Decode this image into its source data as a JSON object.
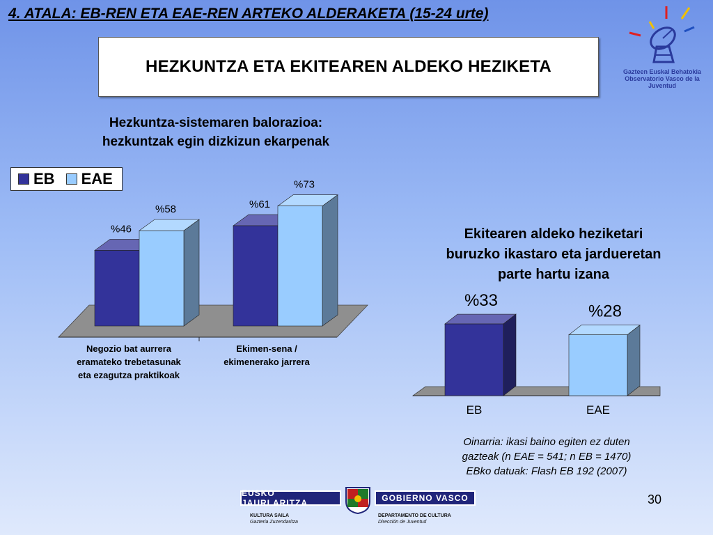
{
  "slide_title": "4. ATALA: EB-REN ETA EAE-REN  ARTEKO ALDERAKETA (15-24 urte)",
  "box_title": "HEZKUNTZA ETA EKITEAREN ALDEKO HEZIKETA",
  "logo": {
    "line1": "Gazteen Euskal Behatokia",
    "line2": "Observatorio Vasco de la Juventud",
    "icon": "satellite-dish-icon"
  },
  "colors": {
    "eb": "#33339a",
    "eae": "#99ccff",
    "floor": "#8f8f8f"
  },
  "chart_data": [
    {
      "type": "bar",
      "title_line1": "Hezkuntza-sistemaren balorazioa:",
      "title_line2": "hezkuntzak egin dizkizun ekarpenak",
      "categories": [
        [
          "Negozio bat aurrera",
          "eramateko trebetasunak",
          "eta ezagutza praktikoak"
        ],
        [
          "Ekimen-sena /",
          "ekimenerako jarrera"
        ]
      ],
      "series": [
        {
          "name": "EB",
          "values": [
            46,
            61
          ],
          "labels": [
            "%46",
            "%61"
          ]
        },
        {
          "name": "EAE",
          "values": [
            58,
            73
          ],
          "labels": [
            "%58",
            "%73"
          ]
        }
      ],
      "ylim": [
        0,
        80
      ],
      "legend": "top-left"
    },
    {
      "type": "bar",
      "title_line1": "Ekitearen aldeko heziketari",
      "title_line2": "buruzko ikastaro eta jardueretan",
      "title_line3": "parte hartu izana",
      "categories": [
        "EB",
        "EAE"
      ],
      "values": [
        33,
        28
      ],
      "labels": [
        "%33",
        "%28"
      ],
      "ylim": [
        0,
        40
      ]
    }
  ],
  "note": {
    "line1": "Oinarria: ikasi baino egiten ez duten",
    "line2": "gazteak (n EAE = 541; n EB = 1470)",
    "line3": "EBko datuak: Flash EB 192 (2007)"
  },
  "page_number": "30",
  "footer": {
    "left_band": "EUSKO JAURLARITZA",
    "right_band": "GOBIERNO VASCO",
    "left_line1": "KULTURA SAILA",
    "left_line2": "Gazteria Zuzendaritza",
    "right_line1": "DEPARTAMENTO DE CULTURA",
    "right_line2": "Dirección de Juventud",
    "crest_icon": "coat-of-arms-icon"
  }
}
